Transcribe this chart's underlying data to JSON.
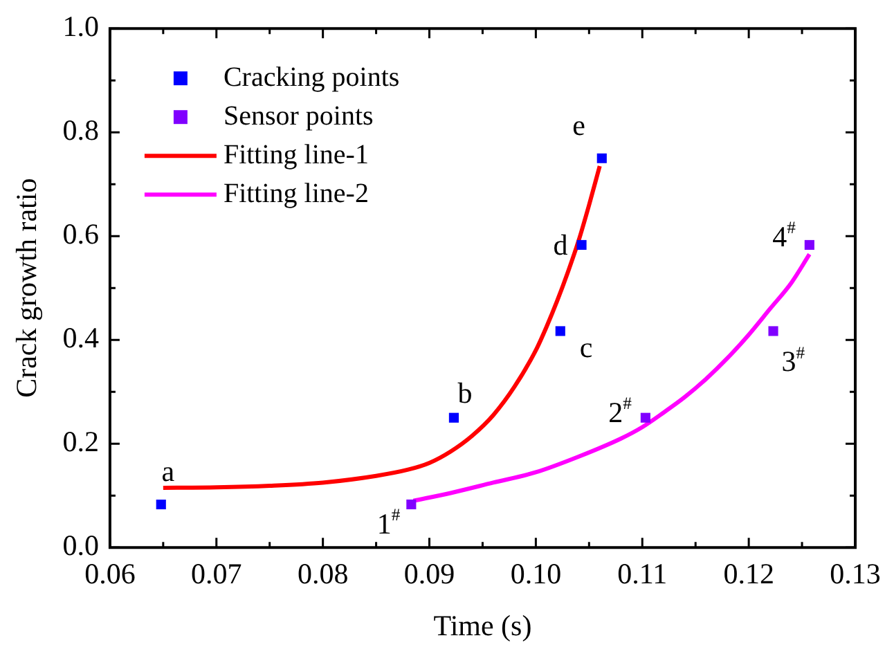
{
  "chart_data": {
    "type": "scatter",
    "xlabel": "Time (s)",
    "ylabel": "Crack growth ratio",
    "xlim": [
      0.06,
      0.13
    ],
    "ylim": [
      0,
      1
    ],
    "xticks": [
      {
        "value": 0.06,
        "label": "0.06"
      },
      {
        "value": 0.065,
        "label": null
      },
      {
        "value": 0.07,
        "label": "0.07"
      },
      {
        "value": 0.075,
        "label": null
      },
      {
        "value": 0.08,
        "label": "0.08"
      },
      {
        "value": 0.085,
        "label": null
      },
      {
        "value": 0.09,
        "label": "0.09"
      },
      {
        "value": 0.095,
        "label": null
      },
      {
        "value": 0.1,
        "label": "0.10"
      },
      {
        "value": 0.105,
        "label": null
      },
      {
        "value": 0.11,
        "label": "0.11"
      },
      {
        "value": 0.115,
        "label": null
      },
      {
        "value": 0.12,
        "label": "0.12"
      },
      {
        "value": 0.125,
        "label": null
      },
      {
        "value": 0.13,
        "label": "0.13"
      }
    ],
    "yticks": [
      {
        "value": 0,
        "label": "0.0"
      },
      {
        "value": 0.1,
        "label": null
      },
      {
        "value": 0.2,
        "label": "0.2"
      },
      {
        "value": 0.3,
        "label": null
      },
      {
        "value": 0.4,
        "label": "0.4"
      },
      {
        "value": 0.5,
        "label": null
      },
      {
        "value": 0.6,
        "label": "0.6"
      },
      {
        "value": 0.7,
        "label": null
      },
      {
        "value": 0.8,
        "label": "0.8"
      },
      {
        "value": 0.9,
        "label": null
      },
      {
        "value": 1,
        "label": "1.0"
      }
    ],
    "grid": false,
    "legend": "top left",
    "marker": "square",
    "series": [
      {
        "name": "Cracking points",
        "type": "scatter",
        "color": "#0000ff",
        "x": [
          0.0648,
          0.0923,
          0.1023,
          0.1043,
          0.1062
        ],
        "values": [
          0.083,
          0.25,
          0.417,
          0.583,
          0.75
        ]
      },
      {
        "name": "Sensor points",
        "type": "scatter",
        "color": "#8000ff",
        "x": [
          0.0883,
          0.1103,
          0.1223,
          0.1257
        ],
        "values": [
          0.083,
          0.25,
          0.417,
          0.583
        ]
      },
      {
        "name": "Fitting line-1",
        "type": "line",
        "color": "#ff0000",
        "marker": "none",
        "x": [
          0.065,
          0.07,
          0.075,
          0.08,
          0.085,
          0.088,
          0.09,
          0.092,
          0.094,
          0.096,
          0.098,
          0.1,
          0.101,
          0.102,
          0.103,
          0.104,
          0.105,
          0.106
        ],
        "values": [
          0.115,
          0.116,
          0.119,
          0.125,
          0.138,
          0.15,
          0.163,
          0.185,
          0.215,
          0.255,
          0.31,
          0.38,
          0.425,
          0.475,
          0.53,
          0.59,
          0.66,
          0.735
        ]
      },
      {
        "name": "Fitting line-2",
        "type": "line",
        "color": "#ff00ff",
        "marker": "none",
        "x": [
          0.0885,
          0.092,
          0.096,
          0.1,
          0.104,
          0.108,
          0.11,
          0.112,
          0.114,
          0.116,
          0.118,
          0.12,
          0.122,
          0.124,
          0.1257
        ],
        "values": [
          0.09,
          0.105,
          0.125,
          0.145,
          0.175,
          0.21,
          0.232,
          0.26,
          0.29,
          0.325,
          0.365,
          0.41,
          0.46,
          0.51,
          0.565
        ]
      }
    ],
    "annotations": [
      {
        "text": "a",
        "x": 0.0648,
        "y": 0.083
      },
      {
        "text": "b",
        "x": 0.0923,
        "y": 0.25
      },
      {
        "text": "c",
        "x": 0.1023,
        "y": 0.417
      },
      {
        "text": "d",
        "x": 0.1043,
        "y": 0.583
      },
      {
        "text": "e",
        "x": 0.1062,
        "y": 0.75
      },
      {
        "text": "1$^{#}$",
        "x": 0.0883,
        "y": 0.083
      },
      {
        "text": "2$^{#}$",
        "x": 0.1103,
        "y": 0.25
      },
      {
        "text": "3$^{#}$",
        "x": 0.1223,
        "y": 0.417
      },
      {
        "text": "4$^{#}$",
        "x": 0.1257,
        "y": 0.583
      }
    ]
  }
}
